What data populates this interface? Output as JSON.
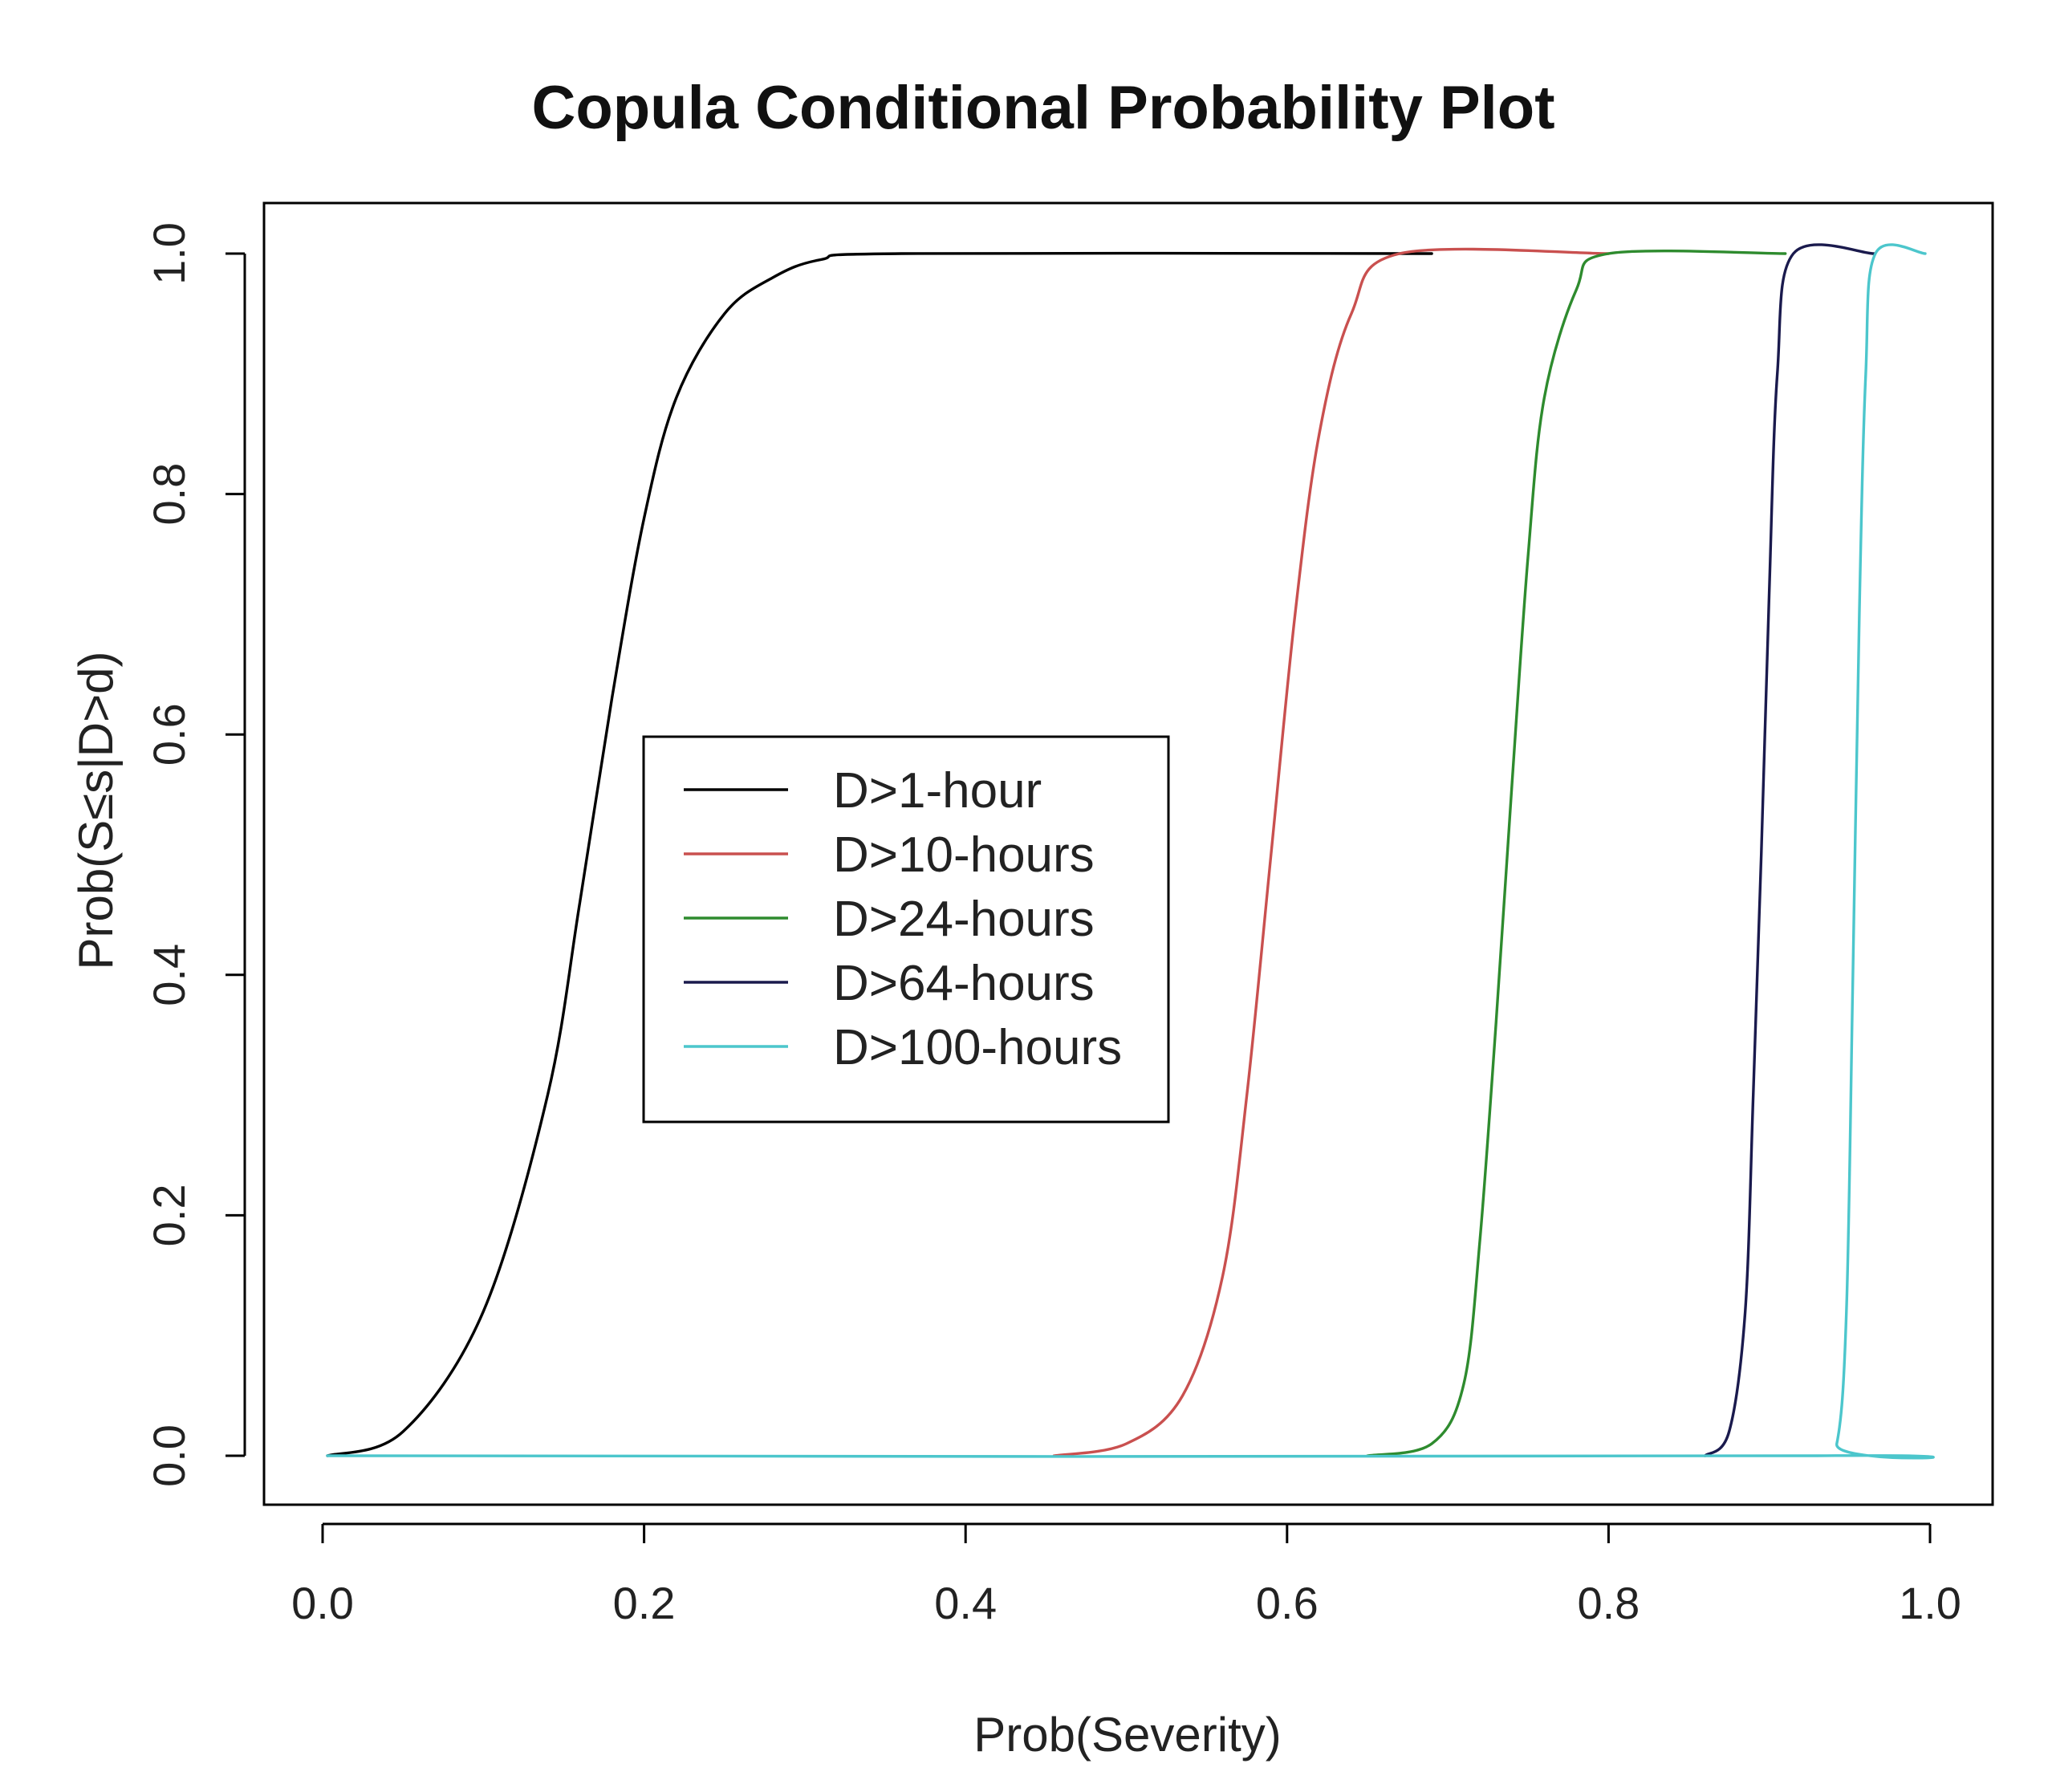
{
  "chart_data": {
    "type": "line",
    "title": "Copula Conditional Probability Plot",
    "xlabel": "Prob(Severity)",
    "ylabel": "Prob(S≤s|D>d)",
    "xlim": [
      0.0,
      1.0
    ],
    "ylim": [
      0.0,
      1.0
    ],
    "x_ticks": [
      "0.0",
      "0.2",
      "0.4",
      "0.6",
      "0.8",
      "1.0"
    ],
    "y_ticks": [
      "0.0",
      "0.2",
      "0.4",
      "0.6",
      "0.8",
      "1.0"
    ],
    "grid": false,
    "legend_position": "center-left",
    "series": [
      {
        "name": "D>1-hour",
        "color": "#000000",
        "x": [
          0.003,
          0.05,
          0.1,
          0.14,
          0.16,
          0.18,
          0.2,
          0.22,
          0.25,
          0.28,
          0.31,
          0.36,
          0.69
        ],
        "y": [
          0.0,
          0.02,
          0.12,
          0.3,
          0.46,
          0.63,
          0.78,
          0.88,
          0.95,
          0.98,
          0.995,
          1.0,
          1.0
        ]
      },
      {
        "name": "D>10-hours",
        "color": "#c9504f",
        "x": [
          0.455,
          0.5,
          0.535,
          0.56,
          0.575,
          0.59,
          0.605,
          0.62,
          0.64,
          0.67,
          0.8
        ],
        "y": [
          0.0,
          0.01,
          0.05,
          0.15,
          0.3,
          0.5,
          0.7,
          0.85,
          0.95,
          1.0,
          1.0
        ]
      },
      {
        "name": "D>24-hours",
        "color": "#2e8b2e",
        "x": [
          0.65,
          0.69,
          0.71,
          0.72,
          0.73,
          0.74,
          0.75,
          0.76,
          0.78,
          0.8,
          0.91
        ],
        "y": [
          0.0,
          0.01,
          0.06,
          0.18,
          0.36,
          0.56,
          0.75,
          0.88,
          0.97,
          1.0,
          1.0
        ]
      },
      {
        "name": "D>64-hours",
        "color": "#1a1a4d",
        "x": [
          0.86,
          0.875,
          0.885,
          0.89,
          0.895,
          0.9,
          0.905,
          0.915,
          0.965
        ],
        "y": [
          0.0,
          0.02,
          0.12,
          0.3,
          0.5,
          0.72,
          0.9,
          1.0,
          1.0
        ]
      },
      {
        "name": "D>100-hours",
        "color": "#4cc6cc",
        "x": [
          0.003,
          0.93,
          0.942,
          0.948,
          0.952,
          0.956,
          0.96,
          0.966,
          0.997
        ],
        "y": [
          0.0,
          0.0,
          0.01,
          0.12,
          0.4,
          0.7,
          0.9,
          1.0,
          1.0
        ]
      }
    ]
  }
}
